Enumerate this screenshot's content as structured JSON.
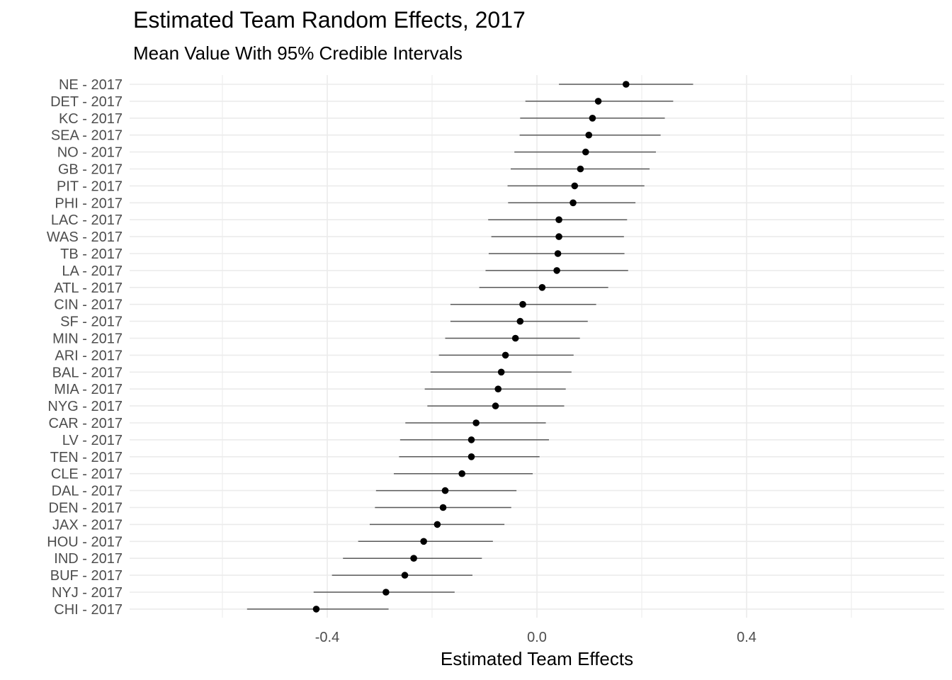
{
  "chart_data": {
    "type": "scatter",
    "title": "Estimated Team Random Effects, 2017",
    "subtitle": "Mean Value With 95% Credible Intervals",
    "xlabel": "Estimated Team Effects",
    "ylabel": "",
    "xlim": [
      -0.77,
      0.77
    ],
    "x_ticks": [
      -0.4,
      0.0,
      0.4
    ],
    "x_tick_labels": [
      "-0.4",
      "0.0",
      "0.4"
    ],
    "grid": true,
    "legend": "none",
    "point_color": "#000000",
    "interval_color": "#595959",
    "grid_color": "#ebebeb",
    "points": [
      {
        "label": "NE - 2017",
        "mean": 0.17,
        "lo": 0.042,
        "hi": 0.298
      },
      {
        "label": "DET - 2017",
        "mean": 0.117,
        "lo": -0.022,
        "hi": 0.26
      },
      {
        "label": "KC - 2017",
        "mean": 0.106,
        "lo": -0.032,
        "hi": 0.244
      },
      {
        "label": "SEA - 2017",
        "mean": 0.099,
        "lo": -0.033,
        "hi": 0.236
      },
      {
        "label": "NO - 2017",
        "mean": 0.093,
        "lo": -0.043,
        "hi": 0.227
      },
      {
        "label": "GB - 2017",
        "mean": 0.083,
        "lo": -0.05,
        "hi": 0.215
      },
      {
        "label": "PIT - 2017",
        "mean": 0.072,
        "lo": -0.056,
        "hi": 0.205
      },
      {
        "label": "PHI - 2017",
        "mean": 0.069,
        "lo": -0.055,
        "hi": 0.188
      },
      {
        "label": "LAC - 2017",
        "mean": 0.042,
        "lo": -0.093,
        "hi": 0.172
      },
      {
        "label": "WAS - 2017",
        "mean": 0.042,
        "lo": -0.087,
        "hi": 0.166
      },
      {
        "label": "TB - 2017",
        "mean": 0.04,
        "lo": -0.092,
        "hi": 0.167
      },
      {
        "label": "LA - 2017",
        "mean": 0.038,
        "lo": -0.098,
        "hi": 0.174
      },
      {
        "label": "ATL - 2017",
        "mean": 0.01,
        "lo": -0.11,
        "hi": 0.136
      },
      {
        "label": "CIN - 2017",
        "mean": -0.027,
        "lo": -0.165,
        "hi": 0.113
      },
      {
        "label": "SF - 2017",
        "mean": -0.032,
        "lo": -0.165,
        "hi": 0.097
      },
      {
        "label": "MIN - 2017",
        "mean": -0.041,
        "lo": -0.175,
        "hi": 0.082
      },
      {
        "label": "ARI - 2017",
        "mean": -0.06,
        "lo": -0.187,
        "hi": 0.07
      },
      {
        "label": "BAL - 2017",
        "mean": -0.068,
        "lo": -0.203,
        "hi": 0.066
      },
      {
        "label": "MIA - 2017",
        "mean": -0.074,
        "lo": -0.214,
        "hi": 0.055
      },
      {
        "label": "NYG - 2017",
        "mean": -0.079,
        "lo": -0.209,
        "hi": 0.052
      },
      {
        "label": "CAR - 2017",
        "mean": -0.116,
        "lo": -0.251,
        "hi": 0.017
      },
      {
        "label": "LV - 2017",
        "mean": -0.125,
        "lo": -0.261,
        "hi": 0.023
      },
      {
        "label": "TEN - 2017",
        "mean": -0.125,
        "lo": -0.263,
        "hi": 0.005
      },
      {
        "label": "CLE - 2017",
        "mean": -0.143,
        "lo": -0.273,
        "hi": -0.008
      },
      {
        "label": "DAL - 2017",
        "mean": -0.175,
        "lo": -0.307,
        "hi": -0.039
      },
      {
        "label": "DEN - 2017",
        "mean": -0.179,
        "lo": -0.309,
        "hi": -0.049
      },
      {
        "label": "JAX - 2017",
        "mean": -0.19,
        "lo": -0.319,
        "hi": -0.062
      },
      {
        "label": "HOU - 2017",
        "mean": -0.216,
        "lo": -0.341,
        "hi": -0.084
      },
      {
        "label": "IND - 2017",
        "mean": -0.235,
        "lo": -0.37,
        "hi": -0.105
      },
      {
        "label": "BUF - 2017",
        "mean": -0.252,
        "lo": -0.391,
        "hi": -0.123
      },
      {
        "label": "NYJ - 2017",
        "mean": -0.288,
        "lo": -0.426,
        "hi": -0.157
      },
      {
        "label": "CHI - 2017",
        "mean": -0.421,
        "lo": -0.553,
        "hi": -0.283
      }
    ]
  }
}
